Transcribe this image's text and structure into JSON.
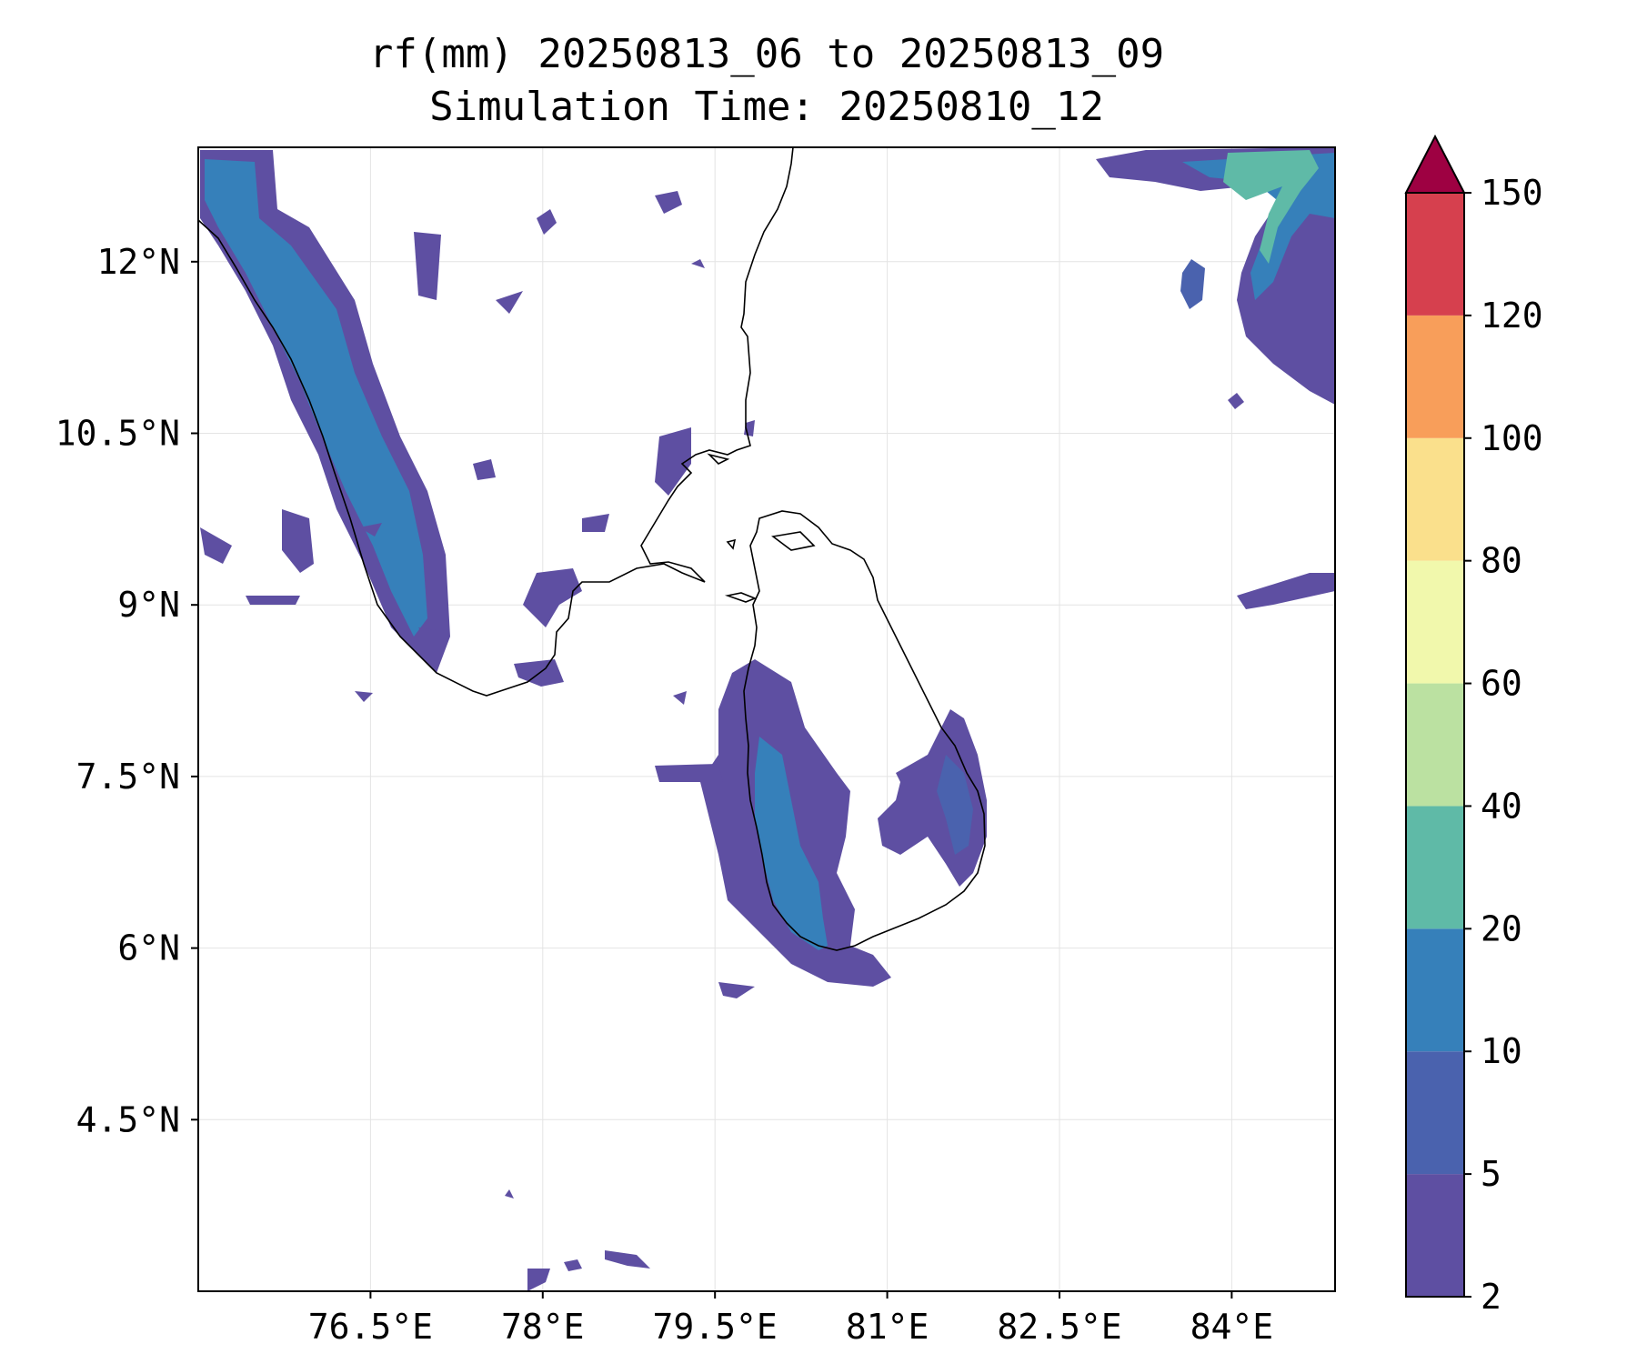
{
  "title_line1": "rf(mm) 20250813_06 to 20250813_09",
  "title_line2": "Simulation Time: 20250810_12",
  "map": {
    "lon_range": [
      75.0,
      84.9
    ],
    "lat_range": [
      3.0,
      13.0
    ],
    "x_ticks": [
      {
        "value": 76.5,
        "label": "76.5°E"
      },
      {
        "value": 78,
        "label": "78°E"
      },
      {
        "value": 79.5,
        "label": "79.5°E"
      },
      {
        "value": 81,
        "label": "81°E"
      },
      {
        "value": 82.5,
        "label": "82.5°E"
      },
      {
        "value": 84,
        "label": "84°E"
      }
    ],
    "y_ticks": [
      {
        "value": 12,
        "label": "12°N"
      },
      {
        "value": 10.5,
        "label": "10.5°N"
      },
      {
        "value": 9,
        "label": "9°N"
      },
      {
        "value": 7.5,
        "label": "7.5°N"
      },
      {
        "value": 6,
        "label": "6°N"
      },
      {
        "value": 4.5,
        "label": "4.5°N"
      }
    ],
    "grid": true
  },
  "colorbar": {
    "levels": [
      "2",
      "5",
      "10",
      "20",
      "40",
      "60",
      "80",
      "100",
      "120",
      "150"
    ],
    "colors": [
      "#5e4fa2",
      "#4a62ae",
      "#3680ba",
      "#5fbaa7",
      "#bbe1a1",
      "#f1f8ac",
      "#fae08c",
      "#f89e5a",
      "#d6404e"
    ],
    "extend_color": "#9e0142"
  },
  "rain_colors": {
    "light": "#5e4fa2",
    "moderate": "#4a62ae",
    "heavy": "#3680ba",
    "very_heavy": "#5fbaa7"
  }
}
